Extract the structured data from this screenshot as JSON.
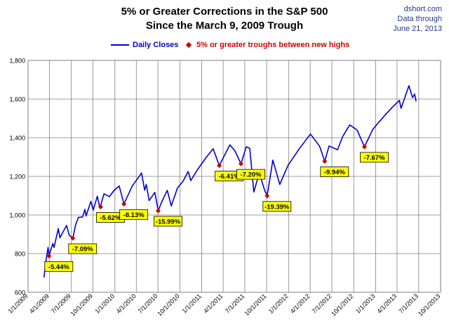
{
  "header": {
    "title_line1": "5% or Greater Corrections in the S&P 500",
    "title_line2": "Since the March 9, 2009 Trough",
    "source": "dshort.com",
    "data_through_label": "Data through",
    "data_through_date": "June 21, 2013"
  },
  "legend": {
    "daily_closes": "Daily Closes",
    "troughs": "5% or greater troughs between new highs"
  },
  "colors": {
    "line": "#0000cc",
    "trough_marker": "#cc0000",
    "label_bg": "#ffff00",
    "grid": "#7f7f7f"
  },
  "chart_data": {
    "type": "line",
    "title": "5% or Greater Corrections in the S&P 500 Since the March 9, 2009 Trough",
    "xlabel": "",
    "ylabel": "",
    "xlim": [
      "2009-01-01",
      "2013-10-01"
    ],
    "ylim": [
      600,
      1800
    ],
    "y_ticks": [
      600,
      800,
      1000,
      1200,
      1400,
      1600,
      1800
    ],
    "y_tick_labels": [
      "600",
      "800",
      "1,000",
      "1,200",
      "1,400",
      "1,600",
      "1,800"
    ],
    "x_ticks": [
      "2009-01-01",
      "2009-04-01",
      "2009-07-01",
      "2009-10-01",
      "2010-01-01",
      "2010-04-01",
      "2010-07-01",
      "2010-10-01",
      "2011-01-01",
      "2011-04-01",
      "2011-07-01",
      "2011-10-01",
      "2012-01-01",
      "2012-04-01",
      "2012-07-01",
      "2012-10-01",
      "2013-01-01",
      "2013-04-01",
      "2013-07-01",
      "2013-10-01"
    ],
    "x_tick_labels": [
      "1/1/2009",
      "4/1/2009",
      "7/1/2009",
      "10/1/2009",
      "1/1/2010",
      "4/1/2010",
      "7/1/2010",
      "10/1/2010",
      "1/1/2011",
      "4/1/2011",
      "7/1/2011",
      "10/1/2011",
      "1/1/2012",
      "4/1/2012",
      "7/1/2012",
      "10/1/2012",
      "1/1/2013",
      "4/1/2013",
      "7/1/2013",
      "10/1/2013"
    ],
    "grid": true,
    "legend_position": "top-center",
    "series": [
      {
        "name": "Daily Closes",
        "points": [
          [
            "2009-03-09",
            677
          ],
          [
            "2009-03-17",
            760
          ],
          [
            "2009-03-26",
            832
          ],
          [
            "2009-03-30",
            788
          ],
          [
            "2009-04-15",
            852
          ],
          [
            "2009-04-20",
            832
          ],
          [
            "2009-05-08",
            930
          ],
          [
            "2009-05-15",
            882
          ],
          [
            "2009-06-12",
            946
          ],
          [
            "2009-06-23",
            895
          ],
          [
            "2009-07-08",
            880
          ],
          [
            "2009-07-20",
            950
          ],
          [
            "2009-07-31",
            987
          ],
          [
            "2009-08-18",
            990
          ],
          [
            "2009-08-28",
            1029
          ],
          [
            "2009-09-02",
            995
          ],
          [
            "2009-09-22",
            1071
          ],
          [
            "2009-10-02",
            1025
          ],
          [
            "2009-10-19",
            1097
          ],
          [
            "2009-10-30",
            1036
          ],
          [
            "2009-11-16",
            1110
          ],
          [
            "2009-12-09",
            1095
          ],
          [
            "2009-12-28",
            1127
          ],
          [
            "2010-01-19",
            1150
          ],
          [
            "2010-02-08",
            1057
          ],
          [
            "2010-03-15",
            1150
          ],
          [
            "2010-04-23",
            1217
          ],
          [
            "2010-05-06",
            1128
          ],
          [
            "2010-05-13",
            1158
          ],
          [
            "2010-05-25",
            1074
          ],
          [
            "2010-06-18",
            1117
          ],
          [
            "2010-07-02",
            1022
          ],
          [
            "2010-07-16",
            1065
          ],
          [
            "2010-08-09",
            1128
          ],
          [
            "2010-08-26",
            1047
          ],
          [
            "2010-09-21",
            1140
          ],
          [
            "2010-10-15",
            1176
          ],
          [
            "2010-11-05",
            1225
          ],
          [
            "2010-11-16",
            1178
          ],
          [
            "2010-12-15",
            1236
          ],
          [
            "2011-01-18",
            1295
          ],
          [
            "2011-02-18",
            1343
          ],
          [
            "2011-03-16",
            1256
          ],
          [
            "2011-04-29",
            1363
          ],
          [
            "2011-05-20",
            1333
          ],
          [
            "2011-06-15",
            1265
          ],
          [
            "2011-07-07",
            1353
          ],
          [
            "2011-07-22",
            1345
          ],
          [
            "2011-08-08",
            1119
          ],
          [
            "2011-08-31",
            1218
          ],
          [
            "2011-09-22",
            1129
          ],
          [
            "2011-10-03",
            1099
          ],
          [
            "2011-10-27",
            1284
          ],
          [
            "2011-11-25",
            1158
          ],
          [
            "2011-12-30",
            1257
          ],
          [
            "2012-02-15",
            1343
          ],
          [
            "2012-04-02",
            1419
          ],
          [
            "2012-05-10",
            1357
          ],
          [
            "2012-06-01",
            1278
          ],
          [
            "2012-06-19",
            1357
          ],
          [
            "2012-07-25",
            1338
          ],
          [
            "2012-08-15",
            1405
          ],
          [
            "2012-09-14",
            1466
          ],
          [
            "2012-10-15",
            1440
          ],
          [
            "2012-11-15",
            1353
          ],
          [
            "2012-12-20",
            1443
          ],
          [
            "2013-01-02",
            1462
          ],
          [
            "2013-02-19",
            1530
          ],
          [
            "2013-03-15",
            1561
          ],
          [
            "2013-04-11",
            1593
          ],
          [
            "2013-04-18",
            1552
          ],
          [
            "2013-05-21",
            1669
          ],
          [
            "2013-06-05",
            1608
          ],
          [
            "2013-06-14",
            1626
          ],
          [
            "2013-06-20",
            1588
          ]
        ]
      }
    ],
    "troughs": [
      {
        "date": "2009-03-30",
        "value": 788,
        "label": "-5.44%"
      },
      {
        "date": "2009-07-08",
        "value": 880,
        "label": "-7.09%"
      },
      {
        "date": "2009-11-02",
        "value": 1042,
        "label": "-5.62%"
      },
      {
        "date": "2010-02-08",
        "value": 1057,
        "label": "-8.13%"
      },
      {
        "date": "2010-07-02",
        "value": 1022,
        "label": "-15.99%"
      },
      {
        "date": "2011-03-16",
        "value": 1256,
        "label": "-6.41%"
      },
      {
        "date": "2011-06-15",
        "value": 1265,
        "label": "-7.20%"
      },
      {
        "date": "2011-10-03",
        "value": 1099,
        "label": "-19.39%"
      },
      {
        "date": "2012-06-01",
        "value": 1278,
        "label": "-9.94%"
      },
      {
        "date": "2012-11-15",
        "value": 1353,
        "label": "-7.67%"
      }
    ]
  }
}
